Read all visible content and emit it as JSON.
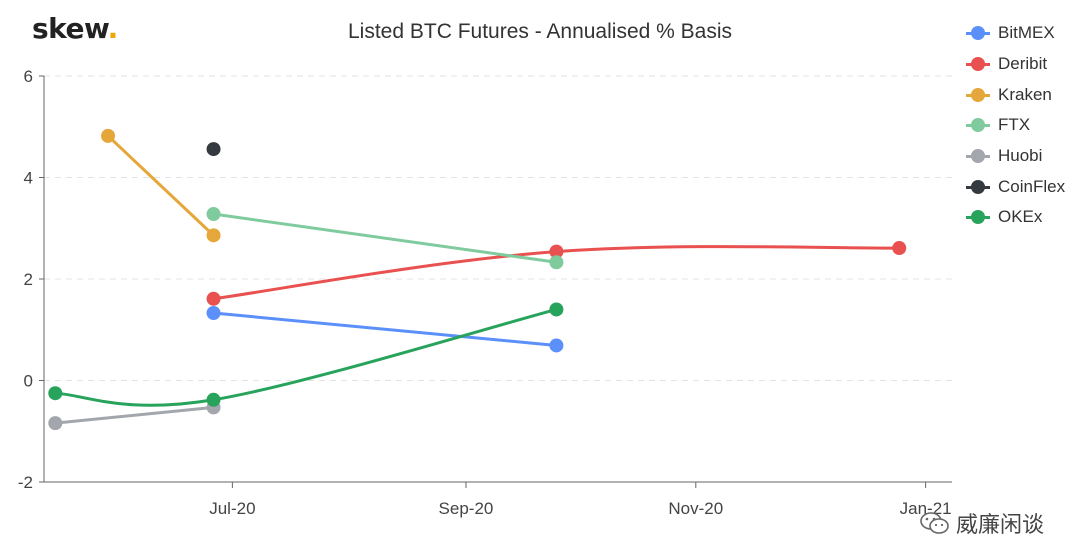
{
  "brand": {
    "name": "skew",
    "dot": "."
  },
  "watermark": {
    "text": "威廉闲谈",
    "icon": "wechat-icon"
  },
  "chart_data": {
    "type": "line",
    "title": "Listed BTC Futures - Annualised % Basis",
    "xlabel": "",
    "ylabel": "",
    "ylim": [
      -2,
      6
    ],
    "yticks": [
      -2,
      0,
      2,
      4,
      6
    ],
    "xlim": [
      "2020-05-12",
      "2021-01-08"
    ],
    "xticks": [
      {
        "label": "Jul-20",
        "date": "2020-07-01"
      },
      {
        "label": "Sep-20",
        "date": "2020-09-01"
      },
      {
        "label": "Nov-20",
        "date": "2020-11-01"
      },
      {
        "label": "Jan-21",
        "date": "2021-01-01"
      }
    ],
    "grid": true,
    "legend_position": "right",
    "series": [
      {
        "name": "BitMEX",
        "color": "#5b8ff9",
        "points": [
          {
            "x": "2020-06-26",
            "y": 1.33
          },
          {
            "x": "2020-09-25",
            "y": 0.69
          }
        ]
      },
      {
        "name": "Deribit",
        "color": "#e8514f",
        "points": [
          {
            "x": "2020-06-26",
            "y": 1.61
          },
          {
            "x": "2020-09-25",
            "y": 2.54
          },
          {
            "x": "2020-12-25",
            "y": 2.61
          }
        ]
      },
      {
        "name": "Kraken",
        "color": "#e6a73a",
        "points": [
          {
            "x": "2020-05-29",
            "y": 4.82
          },
          {
            "x": "2020-06-26",
            "y": 2.86
          }
        ]
      },
      {
        "name": "FTX",
        "color": "#7fcb9e",
        "points": [
          {
            "x": "2020-06-26",
            "y": 3.28
          },
          {
            "x": "2020-09-25",
            "y": 2.33
          }
        ]
      },
      {
        "name": "Huobi",
        "color": "#a3a6ad",
        "points": [
          {
            "x": "2020-05-15",
            "y": -0.84
          },
          {
            "x": "2020-06-26",
            "y": -0.53
          }
        ]
      },
      {
        "name": "CoinFlex",
        "color": "#343a40",
        "points": [
          {
            "x": "2020-06-26",
            "y": 4.56
          }
        ]
      },
      {
        "name": "OKEx",
        "color": "#27a35c",
        "points": [
          {
            "x": "2020-05-15",
            "y": -0.25
          },
          {
            "x": "2020-06-26",
            "y": -0.38
          },
          {
            "x": "2020-09-25",
            "y": 1.4
          }
        ]
      }
    ]
  }
}
